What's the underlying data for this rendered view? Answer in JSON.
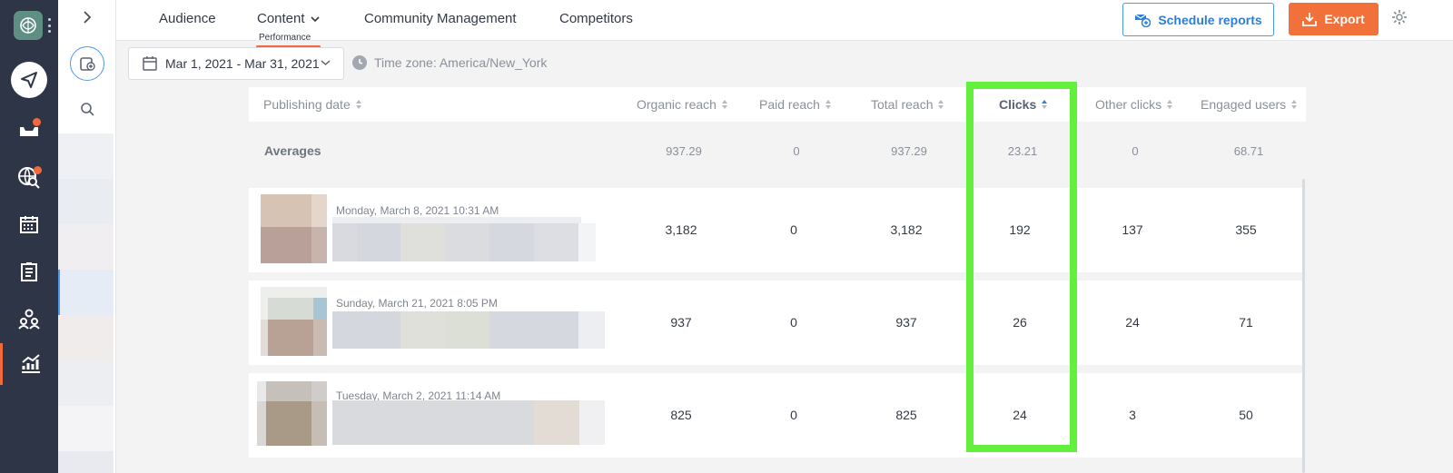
{
  "topnav": {
    "tabs": [
      {
        "label": "Audience"
      },
      {
        "label": "Content",
        "sublabel": "Performance",
        "active": true
      },
      {
        "label": "Community Management"
      },
      {
        "label": "Competitors"
      }
    ],
    "schedule_label": "Schedule reports",
    "export_label": "Export"
  },
  "filters": {
    "date_range": "Mar 1, 2021 - Mar 31, 2021",
    "timezone": "Time zone: America/New_York"
  },
  "table": {
    "columns": [
      "Publishing date",
      "Organic reach",
      "Paid reach",
      "Total reach",
      "Clicks",
      "Other clicks",
      "Engaged users"
    ],
    "sorted_column": "Clicks",
    "averages": {
      "label": "Averages",
      "values": [
        "937.29",
        "0",
        "937.29",
        "23.21",
        "0",
        "68.71"
      ]
    },
    "rows": [
      {
        "date": "Monday, March 8, 2021 10:31 AM",
        "values": [
          "3,182",
          "0",
          "3,182",
          "192",
          "137",
          "355"
        ]
      },
      {
        "date": "Sunday, March 21, 2021 8:05 PM",
        "values": [
          "937",
          "0",
          "937",
          "26",
          "24",
          "71"
        ]
      },
      {
        "date": "Tuesday, March 2, 2021 11:14 AM",
        "values": [
          "825",
          "0",
          "825",
          "24",
          "3",
          "50"
        ]
      }
    ]
  },
  "colors": {
    "accent_orange": "#f2703a",
    "accent_blue": "#2d7ed8",
    "highlight_green": "#62f03c",
    "rail_dark": "#2e3547"
  },
  "icons": [
    "app-logo-icon",
    "more-vertical-icon",
    "send-icon",
    "inbox-icon",
    "listening-icon",
    "calendar-icon",
    "tasks-icon",
    "team-icon",
    "analytics-icon",
    "chevron-right-icon",
    "add-profile-icon",
    "search-icon",
    "calendar-small-icon",
    "chevron-down-icon",
    "clock-icon",
    "schedule-report-icon",
    "download-icon",
    "gear-icon"
  ]
}
